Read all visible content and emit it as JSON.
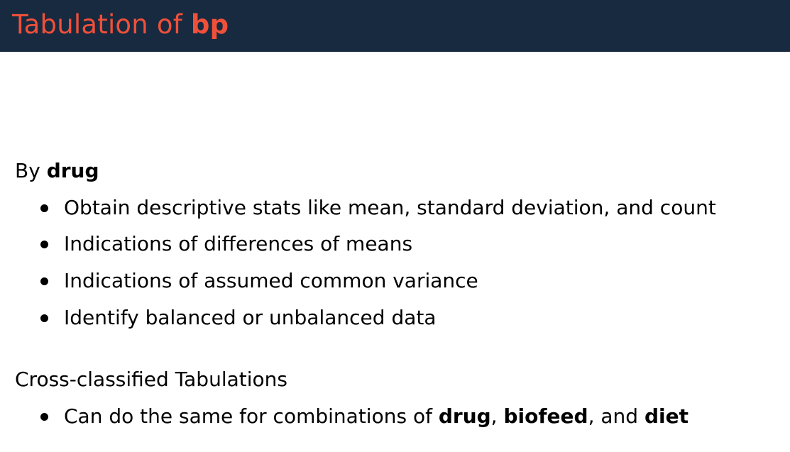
{
  "title": {
    "prefix": "Tabulation of ",
    "emphasis": "bp"
  },
  "section1": {
    "heading_prefix": "By ",
    "heading_emphasis": "drug",
    "bullets": [
      "Obtain descriptive stats like mean, standard deviation, and count",
      "Indications of differences of means",
      "Indications of assumed common variance",
      "Identify balanced or unbalanced data"
    ]
  },
  "section2": {
    "heading": "Cross-classified Tabulations",
    "bullet": {
      "prefix": "Can do the same for combinations of ",
      "term1": "drug",
      "sep1": ", ",
      "term2": "biofeed",
      "sep2": ", and ",
      "term3": "diet"
    }
  },
  "colors": {
    "title_bar": "#172a40",
    "title_text": "#f0503a",
    "body_text": "#000000"
  }
}
